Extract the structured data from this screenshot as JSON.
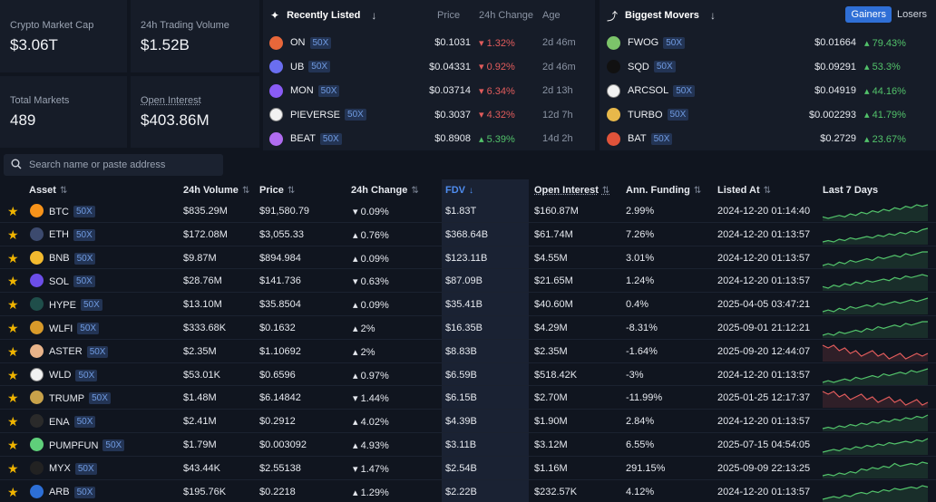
{
  "stats": {
    "market_cap": {
      "label": "Crypto Market Cap",
      "value": "$3.06T"
    },
    "volume": {
      "label": "24h Trading Volume",
      "value": "$1.52B"
    },
    "markets": {
      "label": "Total Markets",
      "value": "489"
    },
    "open_interest": {
      "label": "Open Interest",
      "value": "$403.86M"
    }
  },
  "recent": {
    "title": "Recently Listed",
    "col_price": "Price",
    "col_change": "24h Change",
    "col_age": "Age",
    "rows": [
      {
        "sym": "ON",
        "lev": "50X",
        "price": "$0.1031",
        "change": "1.32%",
        "dir": "neg",
        "age": "2d 46m",
        "color": "#e8673a"
      },
      {
        "sym": "UB",
        "lev": "50X",
        "price": "$0.04331",
        "change": "0.92%",
        "dir": "neg",
        "age": "2d 46m",
        "color": "#6a6ef0"
      },
      {
        "sym": "MON",
        "lev": "50X",
        "price": "$0.03714",
        "change": "6.34%",
        "dir": "neg",
        "age": "2d 13h",
        "color": "#8a5cf6"
      },
      {
        "sym": "PIEVERSE",
        "lev": "50X",
        "price": "$0.3037",
        "change": "4.32%",
        "dir": "neg",
        "age": "12d 7h",
        "color": "#f2f2f2"
      },
      {
        "sym": "BEAT",
        "lev": "50X",
        "price": "$0.8908",
        "change": "5.39%",
        "dir": "pos",
        "age": "14d 2h",
        "color": "#b06cf0"
      }
    ]
  },
  "movers": {
    "title": "Biggest Movers",
    "gainers_label": "Gainers",
    "losers_label": "Losers",
    "rows": [
      {
        "sym": "FWOG",
        "lev": "50X",
        "price": "$0.01664",
        "change": "79.43%",
        "color": "#7cc46a"
      },
      {
        "sym": "SQD",
        "lev": "50X",
        "price": "$0.09291",
        "change": "53.3%",
        "color": "#111111"
      },
      {
        "sym": "ARCSOL",
        "lev": "50X",
        "price": "$0.04919",
        "change": "44.16%",
        "color": "#f2f2f2"
      },
      {
        "sym": "TURBO",
        "lev": "50X",
        "price": "$0.002293",
        "change": "41.79%",
        "color": "#e8b84a"
      },
      {
        "sym": "BAT",
        "lev": "50X",
        "price": "$0.2729",
        "change": "23.67%",
        "color": "#e0533a"
      }
    ]
  },
  "search": {
    "placeholder": "Search name or paste address"
  },
  "table": {
    "headers": {
      "asset": "Asset",
      "volume": "24h Volume",
      "price": "Price",
      "change": "24h Change",
      "fdv": "FDV",
      "oi": "Open Interest",
      "funding": "Ann. Funding",
      "listed": "Listed At",
      "chart": "Last 7 Days"
    },
    "rows": [
      {
        "sym": "BTC",
        "lev": "50X",
        "vol": "$835.29M",
        "price": "$91,580.79",
        "change": "0.09%",
        "dir": "neg",
        "fdv": "$1.83T",
        "oi": "$160.87M",
        "funding": "2.99%",
        "listed": "2024-12-20 01:14:40",
        "color": "#f7931a",
        "trend": [
          6,
          5,
          6,
          7,
          6,
          8,
          7,
          9,
          8,
          10,
          9,
          11,
          10,
          12,
          11,
          13,
          12,
          14,
          13,
          14
        ]
      },
      {
        "sym": "ETH",
        "lev": "50X",
        "vol": "$172.08M",
        "price": "$3,055.33",
        "change": "0.76%",
        "dir": "pos",
        "fdv": "$368.64B",
        "oi": "$61.74M",
        "funding": "7.26%",
        "listed": "2024-12-20 01:13:57",
        "color": "#3c4a6e",
        "trend": [
          4,
          5,
          4,
          6,
          5,
          7,
          6,
          7,
          8,
          7,
          9,
          8,
          10,
          9,
          11,
          10,
          12,
          11,
          13,
          14
        ]
      },
      {
        "sym": "BNB",
        "lev": "50X",
        "vol": "$9.87M",
        "price": "$894.984",
        "change": "0.09%",
        "dir": "pos",
        "fdv": "$123.11B",
        "oi": "$4.55M",
        "funding": "3.01%",
        "listed": "2024-12-20 01:13:57",
        "color": "#f3ba2f",
        "trend": [
          5,
          6,
          5,
          7,
          6,
          8,
          7,
          8,
          9,
          8,
          10,
          9,
          10,
          11,
          10,
          12,
          11,
          12,
          13,
          13
        ]
      },
      {
        "sym": "SOL",
        "lev": "50X",
        "vol": "$28.76M",
        "price": "$141.736",
        "change": "0.63%",
        "dir": "neg",
        "fdv": "$87.09B",
        "oi": "$21.65M",
        "funding": "1.24%",
        "listed": "2024-12-20 01:13:57",
        "color": "#6c4ee8",
        "trend": [
          5,
          4,
          6,
          5,
          7,
          6,
          8,
          7,
          9,
          8,
          9,
          10,
          9,
          11,
          10,
          12,
          11,
          12,
          13,
          12
        ]
      },
      {
        "sym": "HYPE",
        "lev": "50X",
        "vol": "$13.10M",
        "price": "$35.8504",
        "change": "0.09%",
        "dir": "pos",
        "fdv": "$35.41B",
        "oi": "$40.60M",
        "funding": "0.4%",
        "listed": "2025-04-05 03:47:21",
        "color": "#1f4e4a",
        "trend": [
          6,
          7,
          6,
          8,
          7,
          9,
          8,
          9,
          10,
          9,
          11,
          10,
          11,
          12,
          11,
          12,
          13,
          12,
          13,
          14
        ]
      },
      {
        "sym": "WLFI",
        "lev": "50X",
        "vol": "$333.68K",
        "price": "$0.1632",
        "change": "2%",
        "dir": "pos",
        "fdv": "$16.35B",
        "oi": "$4.29M",
        "funding": "-8.31%",
        "listed": "2025-09-01 21:12:21",
        "color": "#d89a2a",
        "trend": [
          5,
          6,
          5,
          7,
          6,
          7,
          8,
          7,
          9,
          8,
          10,
          9,
          10,
          11,
          10,
          12,
          11,
          12,
          13,
          13
        ]
      },
      {
        "sym": "ASTER",
        "lev": "50X",
        "vol": "$2.35M",
        "price": "$1.10692",
        "change": "2%",
        "dir": "pos",
        "fdv": "$8.83B",
        "oi": "$2.35M",
        "funding": "-1.64%",
        "listed": "2025-09-20 12:44:07",
        "color": "#e9b48a",
        "trend": [
          12,
          11,
          12,
          10,
          11,
          9,
          10,
          8,
          9,
          10,
          8,
          9,
          7,
          8,
          9,
          7,
          8,
          9,
          8,
          9
        ],
        "red": true
      },
      {
        "sym": "WLD",
        "lev": "50X",
        "vol": "$53.01K",
        "price": "$0.6596",
        "change": "0.97%",
        "dir": "pos",
        "fdv": "$6.59B",
        "oi": "$518.42K",
        "funding": "-3%",
        "listed": "2024-12-20 01:13:57",
        "color": "#f2f2f2",
        "trend": [
          5,
          6,
          5,
          6,
          7,
          6,
          8,
          7,
          8,
          9,
          8,
          10,
          9,
          10,
          11,
          10,
          12,
          11,
          12,
          13
        ]
      },
      {
        "sym": "TRUMP",
        "lev": "50X",
        "vol": "$1.48M",
        "price": "$6.14842",
        "change": "1.44%",
        "dir": "neg",
        "fdv": "$6.15B",
        "oi": "$2.70M",
        "funding": "-11.99%",
        "listed": "2025-01-25 12:17:37",
        "color": "#c8a24a",
        "trend": [
          13,
          12,
          13,
          11,
          12,
          10,
          11,
          12,
          10,
          11,
          9,
          10,
          11,
          9,
          10,
          8,
          9,
          10,
          8,
          9
        ],
        "red": true
      },
      {
        "sym": "ENA",
        "lev": "50X",
        "vol": "$2.41M",
        "price": "$0.2912",
        "change": "4.02%",
        "dir": "pos",
        "fdv": "$4.39B",
        "oi": "$1.90M",
        "funding": "2.84%",
        "listed": "2024-12-20 01:13:57",
        "color": "#2a2a2a",
        "trend": [
          4,
          5,
          4,
          6,
          5,
          7,
          6,
          8,
          7,
          9,
          8,
          10,
          9,
          11,
          10,
          12,
          11,
          13,
          12,
          14
        ]
      },
      {
        "sym": "PUMPFUN",
        "lev": "50X",
        "vol": "$1.79M",
        "price": "$0.003092",
        "change": "4.93%",
        "dir": "pos",
        "fdv": "$3.11B",
        "oi": "$3.12M",
        "funding": "6.55%",
        "listed": "2025-07-15 04:54:05",
        "color": "#5fcf7a",
        "trend": [
          4,
          5,
          6,
          5,
          7,
          6,
          8,
          7,
          9,
          8,
          10,
          9,
          11,
          10,
          11,
          12,
          11,
          13,
          12,
          14
        ]
      },
      {
        "sym": "MYX",
        "lev": "50X",
        "vol": "$43.44K",
        "price": "$2.55138",
        "change": "1.47%",
        "dir": "neg",
        "fdv": "$2.54B",
        "oi": "$1.16M",
        "funding": "291.15%",
        "listed": "2025-09-09 22:13:25",
        "color": "#222222",
        "trend": [
          3,
          4,
          3,
          5,
          4,
          6,
          5,
          8,
          7,
          9,
          8,
          10,
          9,
          12,
          10,
          11,
          12,
          11,
          13,
          12
        ]
      },
      {
        "sym": "ARB",
        "lev": "50X",
        "vol": "$195.76K",
        "price": "$0.2218",
        "change": "1.29%",
        "dir": "pos",
        "fdv": "$2.22B",
        "oi": "$232.57K",
        "funding": "4.12%",
        "listed": "2024-12-20 01:13:57",
        "color": "#2d6fd6",
        "trend": [
          4,
          5,
          6,
          5,
          7,
          6,
          8,
          9,
          8,
          10,
          9,
          11,
          10,
          12,
          11,
          12,
          13,
          12,
          14,
          13
        ]
      }
    ]
  },
  "colors": {
    "up": "#52c26a",
    "down": "#e25c5c",
    "accent": "#2f6fd6",
    "gold": "#f0b400"
  }
}
